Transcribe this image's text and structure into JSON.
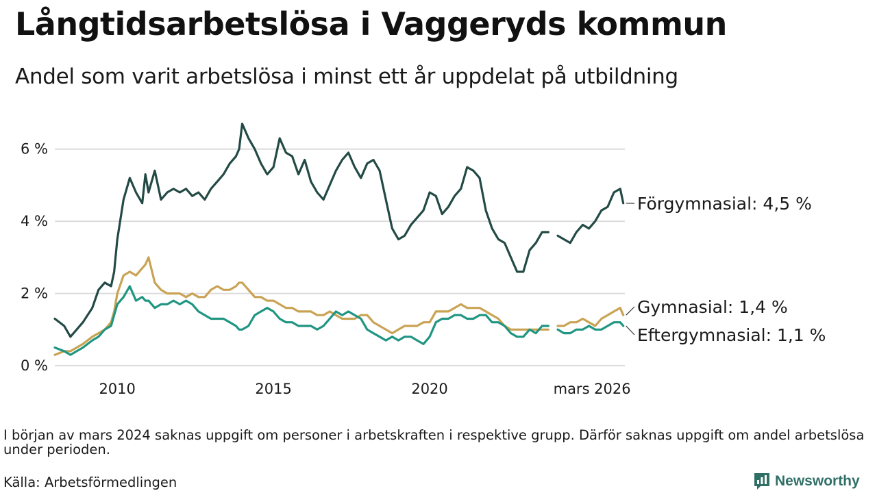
{
  "title": "Långtidsarbetslösa i Vaggeryds kommun",
  "subtitle": "Andel som varit arbetslösa i minst ett år uppdelat på utbildning",
  "footnote": "I början av mars 2024 saknas uppgift om personer i arbetskraften i respektive grupp. Därför saknas uppgift om andel arbetslösa under perioden.",
  "source": "Källa: Arbetsförmedlingen",
  "brand": "Newsworthy",
  "colors": {
    "forgymnasial": "#234a45",
    "gymnasial": "#c9a353",
    "eftergymnasial": "#1f9582",
    "grid": "#dcdcdc",
    "brand": "#2f6f66"
  },
  "chart_data": {
    "type": "line",
    "title": "Långtidsarbetslösa i Vaggeryds kommun",
    "xlabel": "",
    "ylabel": "",
    "xlim": [
      2008.0,
      2026.25
    ],
    "ylim": [
      0,
      7
    ],
    "grid": true,
    "y_ticks": [
      {
        "value": 0,
        "label": "0 %"
      },
      {
        "value": 2,
        "label": "2 %"
      },
      {
        "value": 4,
        "label": "4 %"
      },
      {
        "value": 6,
        "label": "6 %"
      }
    ],
    "x_ticks": [
      {
        "value": 2010,
        "label": "2010"
      },
      {
        "value": 2015,
        "label": "2015"
      },
      {
        "value": 2020,
        "label": "2020"
      },
      {
        "value": 2025.2,
        "label": "mars 2026"
      }
    ],
    "gap": [
      2023.8,
      2024.1
    ],
    "series": [
      {
        "key": "forgymnasial",
        "name": "Förgymnasial",
        "end_label": "Förgymnasial: 4,5 %",
        "x": [
          2008.0,
          2008.3,
          2008.5,
          2008.7,
          2008.9,
          2009.2,
          2009.4,
          2009.6,
          2009.8,
          2009.9,
          2010.0,
          2010.2,
          2010.4,
          2010.6,
          2010.8,
          2010.9,
          2011.0,
          2011.2,
          2011.4,
          2011.6,
          2011.8,
          2012.0,
          2012.2,
          2012.4,
          2012.6,
          2012.8,
          2013.0,
          2013.2,
          2013.4,
          2013.6,
          2013.8,
          2013.9,
          2014.0,
          2014.2,
          2014.4,
          2014.6,
          2014.8,
          2015.0,
          2015.2,
          2015.4,
          2015.6,
          2015.8,
          2016.0,
          2016.2,
          2016.4,
          2016.6,
          2016.8,
          2017.0,
          2017.2,
          2017.4,
          2017.6,
          2017.8,
          2018.0,
          2018.2,
          2018.4,
          2018.6,
          2018.8,
          2019.0,
          2019.2,
          2019.4,
          2019.6,
          2019.8,
          2020.0,
          2020.2,
          2020.4,
          2020.6,
          2020.8,
          2021.0,
          2021.2,
          2021.4,
          2021.6,
          2021.8,
          2022.0,
          2022.2,
          2022.4,
          2022.6,
          2022.8,
          2023.0,
          2023.2,
          2023.4,
          2023.6,
          2023.8,
          null,
          2024.1,
          2024.3,
          2024.5,
          2024.7,
          2024.9,
          2025.1,
          2025.3,
          2025.5,
          2025.7,
          2025.9,
          2026.1,
          2026.2
        ],
        "values": [
          1.3,
          1.1,
          0.8,
          1.0,
          1.2,
          1.6,
          2.1,
          2.3,
          2.2,
          2.6,
          3.5,
          4.6,
          5.2,
          4.8,
          4.5,
          5.3,
          4.8,
          5.4,
          4.6,
          4.8,
          4.9,
          4.8,
          4.9,
          4.7,
          4.8,
          4.6,
          4.9,
          5.1,
          5.3,
          5.6,
          5.8,
          6.0,
          6.7,
          6.3,
          6.0,
          5.6,
          5.3,
          5.5,
          6.3,
          5.9,
          5.8,
          5.3,
          5.7,
          5.1,
          4.8,
          4.6,
          5.0,
          5.4,
          5.7,
          5.9,
          5.5,
          5.2,
          5.6,
          5.7,
          5.4,
          4.6,
          3.8,
          3.5,
          3.6,
          3.9,
          4.1,
          4.3,
          4.8,
          4.7,
          4.2,
          4.4,
          4.7,
          4.9,
          5.5,
          5.4,
          5.2,
          4.3,
          3.8,
          3.5,
          3.4,
          3.0,
          2.6,
          2.6,
          3.2,
          3.4,
          3.7,
          3.7,
          null,
          3.6,
          3.5,
          3.4,
          3.7,
          3.9,
          3.8,
          4.0,
          4.3,
          4.4,
          4.8,
          4.9,
          4.5
        ],
        "color_key": "forgymnasial"
      },
      {
        "key": "gymnasial",
        "name": "Gymnasial",
        "end_label": "Gymnasial: 1,4 %",
        "x": [
          2008.0,
          2008.3,
          2008.5,
          2008.7,
          2008.9,
          2009.2,
          2009.4,
          2009.6,
          2009.8,
          2009.9,
          2010.0,
          2010.2,
          2010.4,
          2010.6,
          2010.8,
          2010.9,
          2011.0,
          2011.2,
          2011.4,
          2011.6,
          2011.8,
          2012.0,
          2012.2,
          2012.4,
          2012.6,
          2012.8,
          2013.0,
          2013.2,
          2013.4,
          2013.6,
          2013.8,
          2013.9,
          2014.0,
          2014.2,
          2014.4,
          2014.6,
          2014.8,
          2015.0,
          2015.2,
          2015.4,
          2015.6,
          2015.8,
          2016.0,
          2016.2,
          2016.4,
          2016.6,
          2016.8,
          2017.0,
          2017.2,
          2017.4,
          2017.6,
          2017.8,
          2018.0,
          2018.2,
          2018.4,
          2018.6,
          2018.8,
          2019.0,
          2019.2,
          2019.4,
          2019.6,
          2019.8,
          2020.0,
          2020.2,
          2020.4,
          2020.6,
          2020.8,
          2021.0,
          2021.2,
          2021.4,
          2021.6,
          2021.8,
          2022.0,
          2022.2,
          2022.4,
          2022.6,
          2022.8,
          2023.0,
          2023.2,
          2023.4,
          2023.6,
          2023.8,
          null,
          2024.1,
          2024.3,
          2024.5,
          2024.7,
          2024.9,
          2025.1,
          2025.3,
          2025.5,
          2025.7,
          2025.9,
          2026.1,
          2026.2
        ],
        "values": [
          0.3,
          0.4,
          0.4,
          0.5,
          0.6,
          0.8,
          0.9,
          1.0,
          1.2,
          1.5,
          2.0,
          2.5,
          2.6,
          2.5,
          2.7,
          2.8,
          3.0,
          2.3,
          2.1,
          2.0,
          2.0,
          2.0,
          1.9,
          2.0,
          1.9,
          1.9,
          2.1,
          2.2,
          2.1,
          2.1,
          2.2,
          2.3,
          2.3,
          2.1,
          1.9,
          1.9,
          1.8,
          1.8,
          1.7,
          1.6,
          1.6,
          1.5,
          1.5,
          1.5,
          1.4,
          1.4,
          1.5,
          1.4,
          1.3,
          1.3,
          1.3,
          1.4,
          1.4,
          1.2,
          1.1,
          1.0,
          0.9,
          1.0,
          1.1,
          1.1,
          1.1,
          1.2,
          1.2,
          1.5,
          1.5,
          1.5,
          1.6,
          1.7,
          1.6,
          1.6,
          1.6,
          1.5,
          1.4,
          1.3,
          1.1,
          1.0,
          1.0,
          1.0,
          1.0,
          1.0,
          1.0,
          1.0,
          null,
          1.1,
          1.1,
          1.2,
          1.2,
          1.3,
          1.2,
          1.1,
          1.3,
          1.4,
          1.5,
          1.6,
          1.4
        ],
        "color_key": "gymnasial"
      },
      {
        "key": "eftergymnasial",
        "name": "Eftergymnasial",
        "end_label": "Eftergymnasial: 1,1 %",
        "x": [
          2008.0,
          2008.3,
          2008.5,
          2008.7,
          2008.9,
          2009.2,
          2009.4,
          2009.6,
          2009.8,
          2009.9,
          2010.0,
          2010.2,
          2010.4,
          2010.6,
          2010.8,
          2010.9,
          2011.0,
          2011.2,
          2011.4,
          2011.6,
          2011.8,
          2012.0,
          2012.2,
          2012.4,
          2012.6,
          2012.8,
          2013.0,
          2013.2,
          2013.4,
          2013.6,
          2013.8,
          2013.9,
          2014.0,
          2014.2,
          2014.4,
          2014.6,
          2014.8,
          2015.0,
          2015.2,
          2015.4,
          2015.6,
          2015.8,
          2016.0,
          2016.2,
          2016.4,
          2016.6,
          2016.8,
          2017.0,
          2017.2,
          2017.4,
          2017.6,
          2017.8,
          2018.0,
          2018.2,
          2018.4,
          2018.6,
          2018.8,
          2019.0,
          2019.2,
          2019.4,
          2019.6,
          2019.8,
          2020.0,
          2020.2,
          2020.4,
          2020.6,
          2020.8,
          2021.0,
          2021.2,
          2021.4,
          2021.6,
          2021.8,
          2022.0,
          2022.2,
          2022.4,
          2022.6,
          2022.8,
          2023.0,
          2023.2,
          2023.4,
          2023.6,
          2023.8,
          null,
          2024.1,
          2024.3,
          2024.5,
          2024.7,
          2024.9,
          2025.1,
          2025.3,
          2025.5,
          2025.7,
          2025.9,
          2026.1,
          2026.2
        ],
        "values": [
          0.5,
          0.4,
          0.3,
          0.4,
          0.5,
          0.7,
          0.8,
          1.0,
          1.1,
          1.4,
          1.7,
          1.9,
          2.2,
          1.8,
          1.9,
          1.8,
          1.8,
          1.6,
          1.7,
          1.7,
          1.8,
          1.7,
          1.8,
          1.7,
          1.5,
          1.4,
          1.3,
          1.3,
          1.3,
          1.2,
          1.1,
          1.0,
          1.0,
          1.1,
          1.4,
          1.5,
          1.6,
          1.5,
          1.3,
          1.2,
          1.2,
          1.1,
          1.1,
          1.1,
          1.0,
          1.1,
          1.3,
          1.5,
          1.4,
          1.5,
          1.4,
          1.3,
          1.0,
          0.9,
          0.8,
          0.7,
          0.8,
          0.7,
          0.8,
          0.8,
          0.7,
          0.6,
          0.8,
          1.2,
          1.3,
          1.3,
          1.4,
          1.4,
          1.3,
          1.3,
          1.4,
          1.4,
          1.2,
          1.2,
          1.1,
          0.9,
          0.8,
          0.8,
          1.0,
          0.9,
          1.1,
          1.1,
          null,
          1.0,
          0.9,
          0.9,
          1.0,
          1.0,
          1.1,
          1.0,
          1.0,
          1.1,
          1.2,
          1.2,
          1.1
        ],
        "color_key": "eftergymnasial"
      }
    ]
  }
}
